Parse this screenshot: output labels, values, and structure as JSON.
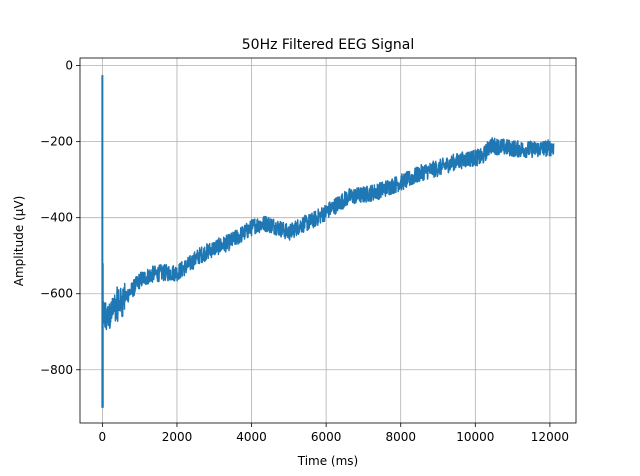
{
  "chart_data": {
    "type": "line",
    "title": "50Hz Filtered EEG Signal",
    "xlabel": "Time (ms)",
    "ylabel": "Amplitude  (µV)",
    "xlim": [
      -600,
      12700
    ],
    "ylim": [
      -940,
      20
    ],
    "xticks": [
      0,
      2000,
      4000,
      6000,
      8000,
      10000,
      12000
    ],
    "xtick_labels": [
      "0",
      "2000",
      "4000",
      "6000",
      "8000",
      "10000",
      "12000"
    ],
    "yticks": [
      0,
      -200,
      -400,
      -600,
      -800
    ],
    "ytick_labels": [
      "0",
      "−200",
      "−400",
      "−600",
      "−800"
    ],
    "grid": true,
    "line_color": "#1f77b4",
    "series": [
      {
        "x": [
          0,
          10,
          20,
          40,
          80,
          150,
          300,
          500,
          800,
          1000,
          1300,
          1600,
          2000,
          2300,
          2600,
          3000,
          3400,
          3800,
          4100,
          4400,
          4700,
          5000,
          5300,
          5600,
          6000,
          6300,
          6600,
          7000,
          7400,
          7800,
          8200,
          8600,
          9000,
          9400,
          9800,
          10200,
          10400,
          10800,
          11200,
          11600,
          12100
        ],
        "y": [
          -630,
          -650,
          -650,
          -660,
          -670,
          -660,
          -640,
          -620,
          -590,
          -565,
          -550,
          -545,
          -545,
          -525,
          -500,
          -480,
          -465,
          -440,
          -420,
          -415,
          -425,
          -440,
          -420,
          -410,
          -385,
          -365,
          -345,
          -340,
          -330,
          -315,
          -300,
          -280,
          -270,
          -255,
          -245,
          -240,
          -210,
          -215,
          -220,
          -220,
          -215
        ]
      }
    ],
    "spikes": [
      {
        "x": 0,
        "y_min": -900,
        "y_max": -25
      },
      {
        "x": 10,
        "y_min": -900,
        "y_max": -520
      }
    ],
    "noise_amplitude": 22
  }
}
